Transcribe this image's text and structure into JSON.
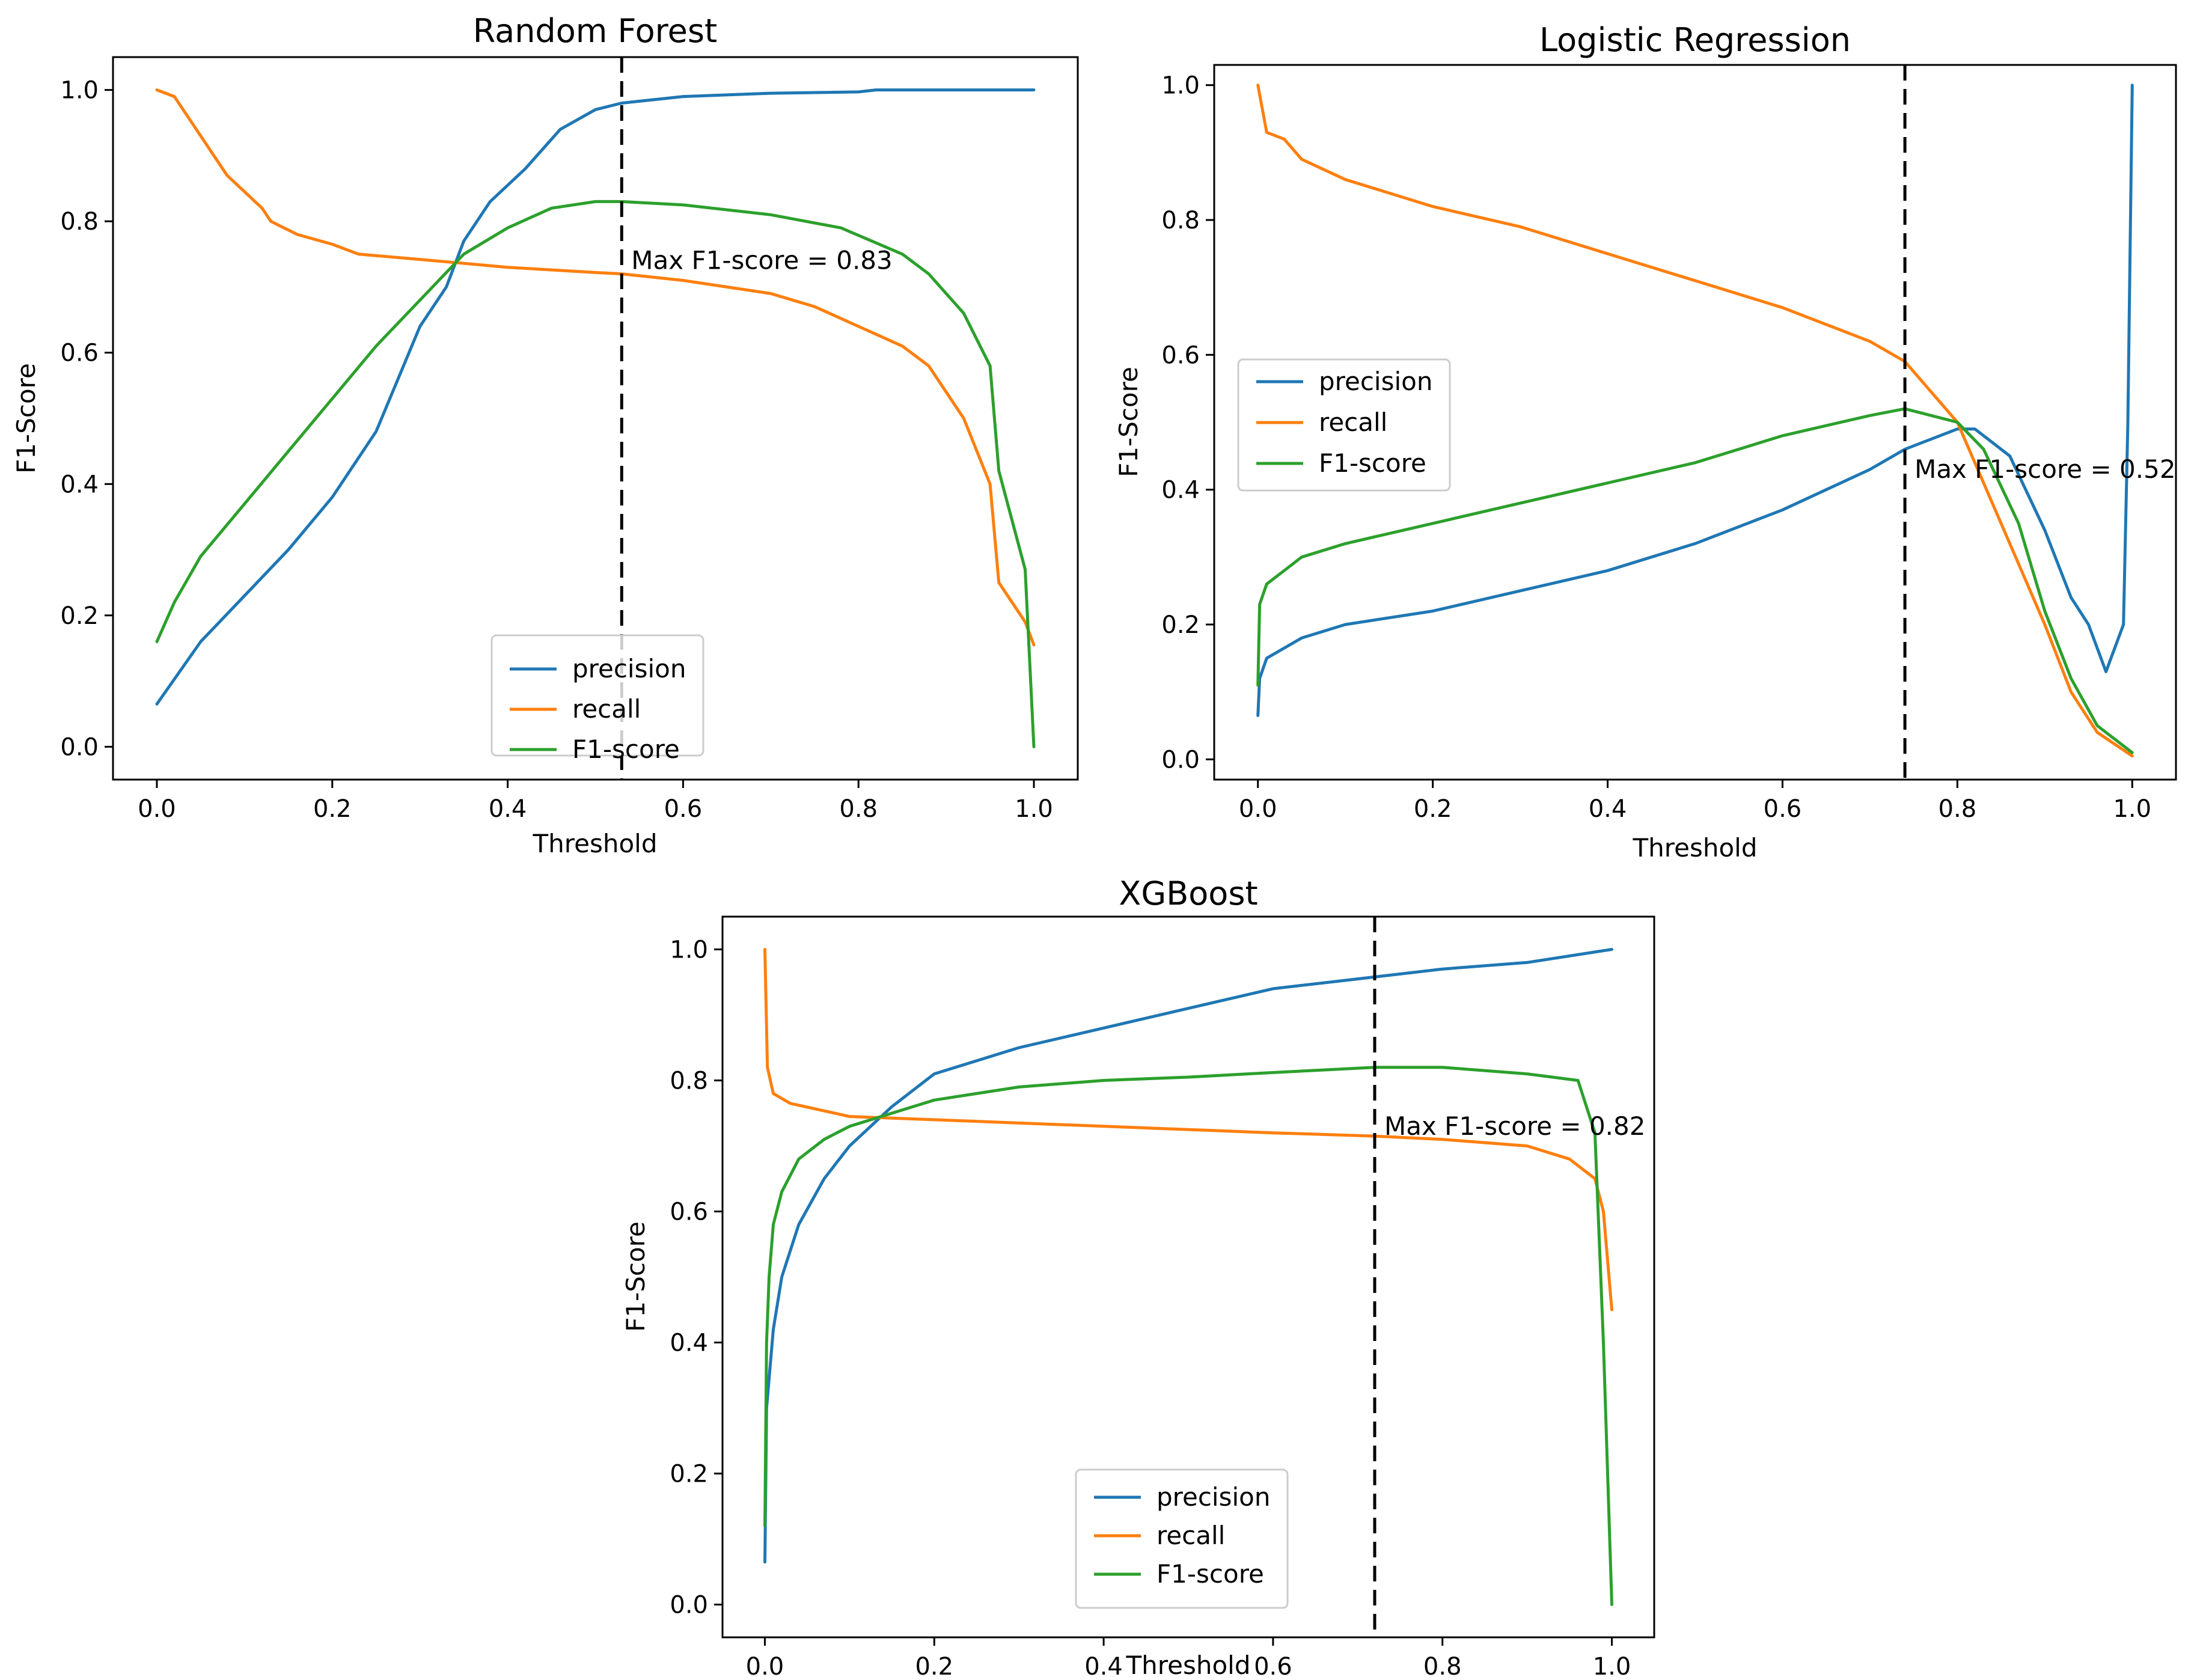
{
  "colors": {
    "precision": "#1f77b4",
    "recall": "#ff7f0e",
    "f1": "#2ca02c"
  },
  "chart_data": [
    {
      "type": "line",
      "title": "Random Forest",
      "xlabel": "Threshold",
      "ylabel": "F1-Score",
      "xlim": [
        -0.05,
        1.05
      ],
      "ylim": [
        -0.05,
        1.05
      ],
      "xticks": [
        0.0,
        0.2,
        0.4,
        0.6,
        0.8,
        1.0
      ],
      "yticks": [
        0.0,
        0.2,
        0.4,
        0.6,
        0.8,
        1.0
      ],
      "xtick_labels": [
        "0.0",
        "0.2",
        "0.4",
        "0.6",
        "0.8",
        "1.0"
      ],
      "ytick_labels": [
        "0.0",
        "0.2",
        "0.4",
        "0.6",
        "0.8",
        "1.0"
      ],
      "best_threshold": 0.53,
      "annotation": "Max F1-score = 0.83",
      "legend_position": "lower center",
      "series": [
        {
          "name": "precision",
          "color_key": "precision",
          "points": [
            [
              0.0,
              0.065
            ],
            [
              0.05,
              0.16
            ],
            [
              0.1,
              0.23
            ],
            [
              0.15,
              0.3
            ],
            [
              0.2,
              0.38
            ],
            [
              0.25,
              0.48
            ],
            [
              0.3,
              0.64
            ],
            [
              0.33,
              0.7
            ],
            [
              0.35,
              0.77
            ],
            [
              0.38,
              0.83
            ],
            [
              0.42,
              0.88
            ],
            [
              0.46,
              0.94
            ],
            [
              0.5,
              0.97
            ],
            [
              0.53,
              0.98
            ],
            [
              0.6,
              0.99
            ],
            [
              0.7,
              0.995
            ],
            [
              0.8,
              0.997
            ],
            [
              0.82,
              1.0
            ],
            [
              0.9,
              1.0
            ],
            [
              1.0,
              1.0
            ]
          ]
        },
        {
          "name": "recall",
          "color_key": "recall",
          "points": [
            [
              0.0,
              1.0
            ],
            [
              0.02,
              0.99
            ],
            [
              0.05,
              0.93
            ],
            [
              0.08,
              0.87
            ],
            [
              0.12,
              0.82
            ],
            [
              0.13,
              0.8
            ],
            [
              0.16,
              0.78
            ],
            [
              0.2,
              0.765
            ],
            [
              0.23,
              0.75
            ],
            [
              0.3,
              0.742
            ],
            [
              0.4,
              0.73
            ],
            [
              0.5,
              0.722
            ],
            [
              0.53,
              0.72
            ],
            [
              0.6,
              0.71
            ],
            [
              0.7,
              0.69
            ],
            [
              0.75,
              0.67
            ],
            [
              0.8,
              0.64
            ],
            [
              0.85,
              0.61
            ],
            [
              0.88,
              0.58
            ],
            [
              0.92,
              0.5
            ],
            [
              0.95,
              0.4
            ],
            [
              0.96,
              0.25
            ],
            [
              0.99,
              0.19
            ],
            [
              1.0,
              0.155
            ]
          ]
        },
        {
          "name": "F1-score",
          "color_key": "f1",
          "points": [
            [
              0.0,
              0.16
            ],
            [
              0.02,
              0.22
            ],
            [
              0.05,
              0.29
            ],
            [
              0.1,
              0.37
            ],
            [
              0.15,
              0.45
            ],
            [
              0.2,
              0.53
            ],
            [
              0.25,
              0.61
            ],
            [
              0.3,
              0.68
            ],
            [
              0.35,
              0.75
            ],
            [
              0.4,
              0.79
            ],
            [
              0.45,
              0.82
            ],
            [
              0.5,
              0.83
            ],
            [
              0.53,
              0.83
            ],
            [
              0.6,
              0.825
            ],
            [
              0.7,
              0.81
            ],
            [
              0.78,
              0.79
            ],
            [
              0.85,
              0.75
            ],
            [
              0.88,
              0.72
            ],
            [
              0.92,
              0.66
            ],
            [
              0.95,
              0.58
            ],
            [
              0.96,
              0.42
            ],
            [
              0.99,
              0.27
            ],
            [
              1.0,
              0.0
            ]
          ]
        }
      ]
    },
    {
      "type": "line",
      "title": "Logistic Regression",
      "xlabel": "Threshold",
      "ylabel": "F1-Score",
      "xlim": [
        -0.05,
        1.05
      ],
      "ylim": [
        -0.03,
        1.03
      ],
      "xticks": [
        0.0,
        0.2,
        0.4,
        0.6,
        0.8,
        1.0
      ],
      "yticks": [
        0.0,
        0.2,
        0.4,
        0.6,
        0.8,
        1.0
      ],
      "xtick_labels": [
        "0.0",
        "0.2",
        "0.4",
        "0.6",
        "0.8",
        "1.0"
      ],
      "ytick_labels": [
        "0.0",
        "0.2",
        "0.4",
        "0.6",
        "0.8",
        "1.0"
      ],
      "best_threshold": 0.74,
      "annotation": "Max F1-score = 0.52",
      "legend_position": "center left",
      "series": [
        {
          "name": "precision",
          "color_key": "precision",
          "points": [
            [
              0.0,
              0.065
            ],
            [
              0.002,
              0.12
            ],
            [
              0.01,
              0.15
            ],
            [
              0.05,
              0.18
            ],
            [
              0.1,
              0.2
            ],
            [
              0.2,
              0.22
            ],
            [
              0.3,
              0.25
            ],
            [
              0.4,
              0.28
            ],
            [
              0.5,
              0.32
            ],
            [
              0.6,
              0.37
            ],
            [
              0.7,
              0.43
            ],
            [
              0.74,
              0.46
            ],
            [
              0.8,
              0.49
            ],
            [
              0.82,
              0.49
            ],
            [
              0.86,
              0.45
            ],
            [
              0.9,
              0.34
            ],
            [
              0.93,
              0.24
            ],
            [
              0.95,
              0.2
            ],
            [
              0.97,
              0.13
            ],
            [
              0.99,
              0.2
            ],
            [
              0.995,
              0.5
            ],
            [
              1.0,
              1.0
            ]
          ]
        },
        {
          "name": "recall",
          "color_key": "recall",
          "points": [
            [
              0.0,
              1.0
            ],
            [
              0.01,
              0.93
            ],
            [
              0.03,
              0.92
            ],
            [
              0.05,
              0.89
            ],
            [
              0.1,
              0.86
            ],
            [
              0.15,
              0.84
            ],
            [
              0.2,
              0.82
            ],
            [
              0.3,
              0.79
            ],
            [
              0.4,
              0.75
            ],
            [
              0.5,
              0.71
            ],
            [
              0.6,
              0.67
            ],
            [
              0.7,
              0.62
            ],
            [
              0.74,
              0.59
            ],
            [
              0.8,
              0.5
            ],
            [
              0.85,
              0.35
            ],
            [
              0.9,
              0.2
            ],
            [
              0.93,
              0.1
            ],
            [
              0.96,
              0.04
            ],
            [
              1.0,
              0.005
            ]
          ]
        },
        {
          "name": "F1-score",
          "color_key": "f1",
          "points": [
            [
              0.0,
              0.11
            ],
            [
              0.002,
              0.23
            ],
            [
              0.01,
              0.26
            ],
            [
              0.03,
              0.28
            ],
            [
              0.05,
              0.3
            ],
            [
              0.1,
              0.32
            ],
            [
              0.2,
              0.35
            ],
            [
              0.3,
              0.38
            ],
            [
              0.4,
              0.41
            ],
            [
              0.5,
              0.44
            ],
            [
              0.6,
              0.48
            ],
            [
              0.7,
              0.51
            ],
            [
              0.74,
              0.52
            ],
            [
              0.8,
              0.5
            ],
            [
              0.83,
              0.46
            ],
            [
              0.87,
              0.35
            ],
            [
              0.9,
              0.22
            ],
            [
              0.93,
              0.12
            ],
            [
              0.96,
              0.05
            ],
            [
              1.0,
              0.01
            ]
          ]
        }
      ]
    },
    {
      "type": "line",
      "title": "XGBoost",
      "xlabel": "Threshold",
      "ylabel": "F1-Score",
      "xlim": [
        -0.05,
        1.05
      ],
      "ylim": [
        -0.05,
        1.05
      ],
      "xticks": [
        0.0,
        0.2,
        0.4,
        0.6,
        0.8,
        1.0
      ],
      "yticks": [
        0.0,
        0.2,
        0.4,
        0.6,
        0.8,
        1.0
      ],
      "xtick_labels": [
        "0.0",
        "0.2",
        "0.4",
        "0.6",
        "0.8",
        "1.0"
      ],
      "ytick_labels": [
        "0.0",
        "0.2",
        "0.4",
        "0.6",
        "0.8",
        "1.0"
      ],
      "best_threshold": 0.72,
      "annotation": "Max F1-score = 0.82",
      "legend_position": "lower center",
      "series": [
        {
          "name": "precision",
          "color_key": "precision",
          "points": [
            [
              0.0,
              0.065
            ],
            [
              0.002,
              0.3
            ],
            [
              0.01,
              0.42
            ],
            [
              0.02,
              0.5
            ],
            [
              0.04,
              0.58
            ],
            [
              0.07,
              0.65
            ],
            [
              0.1,
              0.7
            ],
            [
              0.15,
              0.76
            ],
            [
              0.2,
              0.81
            ],
            [
              0.3,
              0.85
            ],
            [
              0.4,
              0.88
            ],
            [
              0.5,
              0.91
            ],
            [
              0.6,
              0.94
            ],
            [
              0.7,
              0.955
            ],
            [
              0.8,
              0.97
            ],
            [
              0.9,
              0.98
            ],
            [
              1.0,
              1.0
            ]
          ]
        },
        {
          "name": "recall",
          "color_key": "recall",
          "points": [
            [
              0.0,
              1.0
            ],
            [
              0.003,
              0.82
            ],
            [
              0.01,
              0.78
            ],
            [
              0.03,
              0.765
            ],
            [
              0.1,
              0.745
            ],
            [
              0.2,
              0.74
            ],
            [
              0.4,
              0.73
            ],
            [
              0.6,
              0.72
            ],
            [
              0.72,
              0.715
            ],
            [
              0.8,
              0.71
            ],
            [
              0.9,
              0.7
            ],
            [
              0.95,
              0.68
            ],
            [
              0.98,
              0.65
            ],
            [
              0.99,
              0.6
            ],
            [
              1.0,
              0.45
            ]
          ]
        },
        {
          "name": "F1-score",
          "color_key": "f1",
          "points": [
            [
              0.0,
              0.12
            ],
            [
              0.002,
              0.4
            ],
            [
              0.005,
              0.5
            ],
            [
              0.01,
              0.58
            ],
            [
              0.02,
              0.63
            ],
            [
              0.04,
              0.68
            ],
            [
              0.07,
              0.71
            ],
            [
              0.1,
              0.73
            ],
            [
              0.15,
              0.75
            ],
            [
              0.2,
              0.77
            ],
            [
              0.3,
              0.79
            ],
            [
              0.4,
              0.8
            ],
            [
              0.5,
              0.805
            ],
            [
              0.6,
              0.812
            ],
            [
              0.72,
              0.82
            ],
            [
              0.8,
              0.82
            ],
            [
              0.9,
              0.81
            ],
            [
              0.96,
              0.8
            ],
            [
              0.98,
              0.72
            ],
            [
              0.99,
              0.4
            ],
            [
              1.0,
              0.0
            ]
          ]
        }
      ]
    }
  ]
}
